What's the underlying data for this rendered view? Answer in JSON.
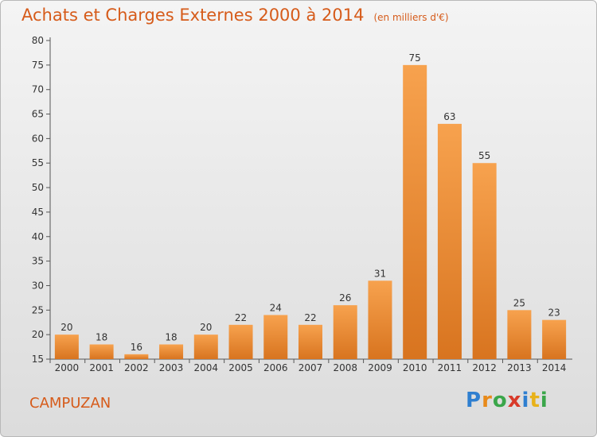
{
  "title": "Achats et Charges Externes 2000 à 2014",
  "subtitle": "(en milliers d'€)",
  "commune": "CAMPUZAN",
  "logo": {
    "text": "Proxiti",
    "letters": [
      {
        "ch": "P",
        "color": "#2f7fd0"
      },
      {
        "ch": "r",
        "color": "#e88a1a"
      },
      {
        "ch": "o",
        "color": "#3aa64a"
      },
      {
        "ch": "x",
        "color": "#d83a2a"
      },
      {
        "ch": "i",
        "color": "#2f7fd0"
      },
      {
        "ch": "t",
        "color": "#e8b21a"
      },
      {
        "ch": "i",
        "color": "#3aa64a"
      }
    ]
  },
  "colors": {
    "bar_light": "#f7a24e",
    "bar_dark": "#d8741f",
    "title": "#d65b1a"
  },
  "chart_data": {
    "type": "bar",
    "title": "Achats et Charges Externes 2000 à 2014",
    "subtitle": "(en milliers d'€)",
    "xlabel": "",
    "ylabel": "",
    "categories": [
      "2000",
      "2001",
      "2002",
      "2003",
      "2004",
      "2005",
      "2006",
      "2007",
      "2008",
      "2009",
      "2010",
      "2011",
      "2012",
      "2013",
      "2014"
    ],
    "values": [
      20,
      18,
      16,
      18,
      20,
      22,
      24,
      22,
      26,
      31,
      75,
      63,
      55,
      25,
      23
    ],
    "ylim": [
      15,
      80
    ],
    "yticks": [
      15,
      20,
      25,
      30,
      35,
      40,
      45,
      50,
      55,
      60,
      65,
      70,
      75,
      80
    ],
    "grid": false,
    "legend": "none"
  }
}
